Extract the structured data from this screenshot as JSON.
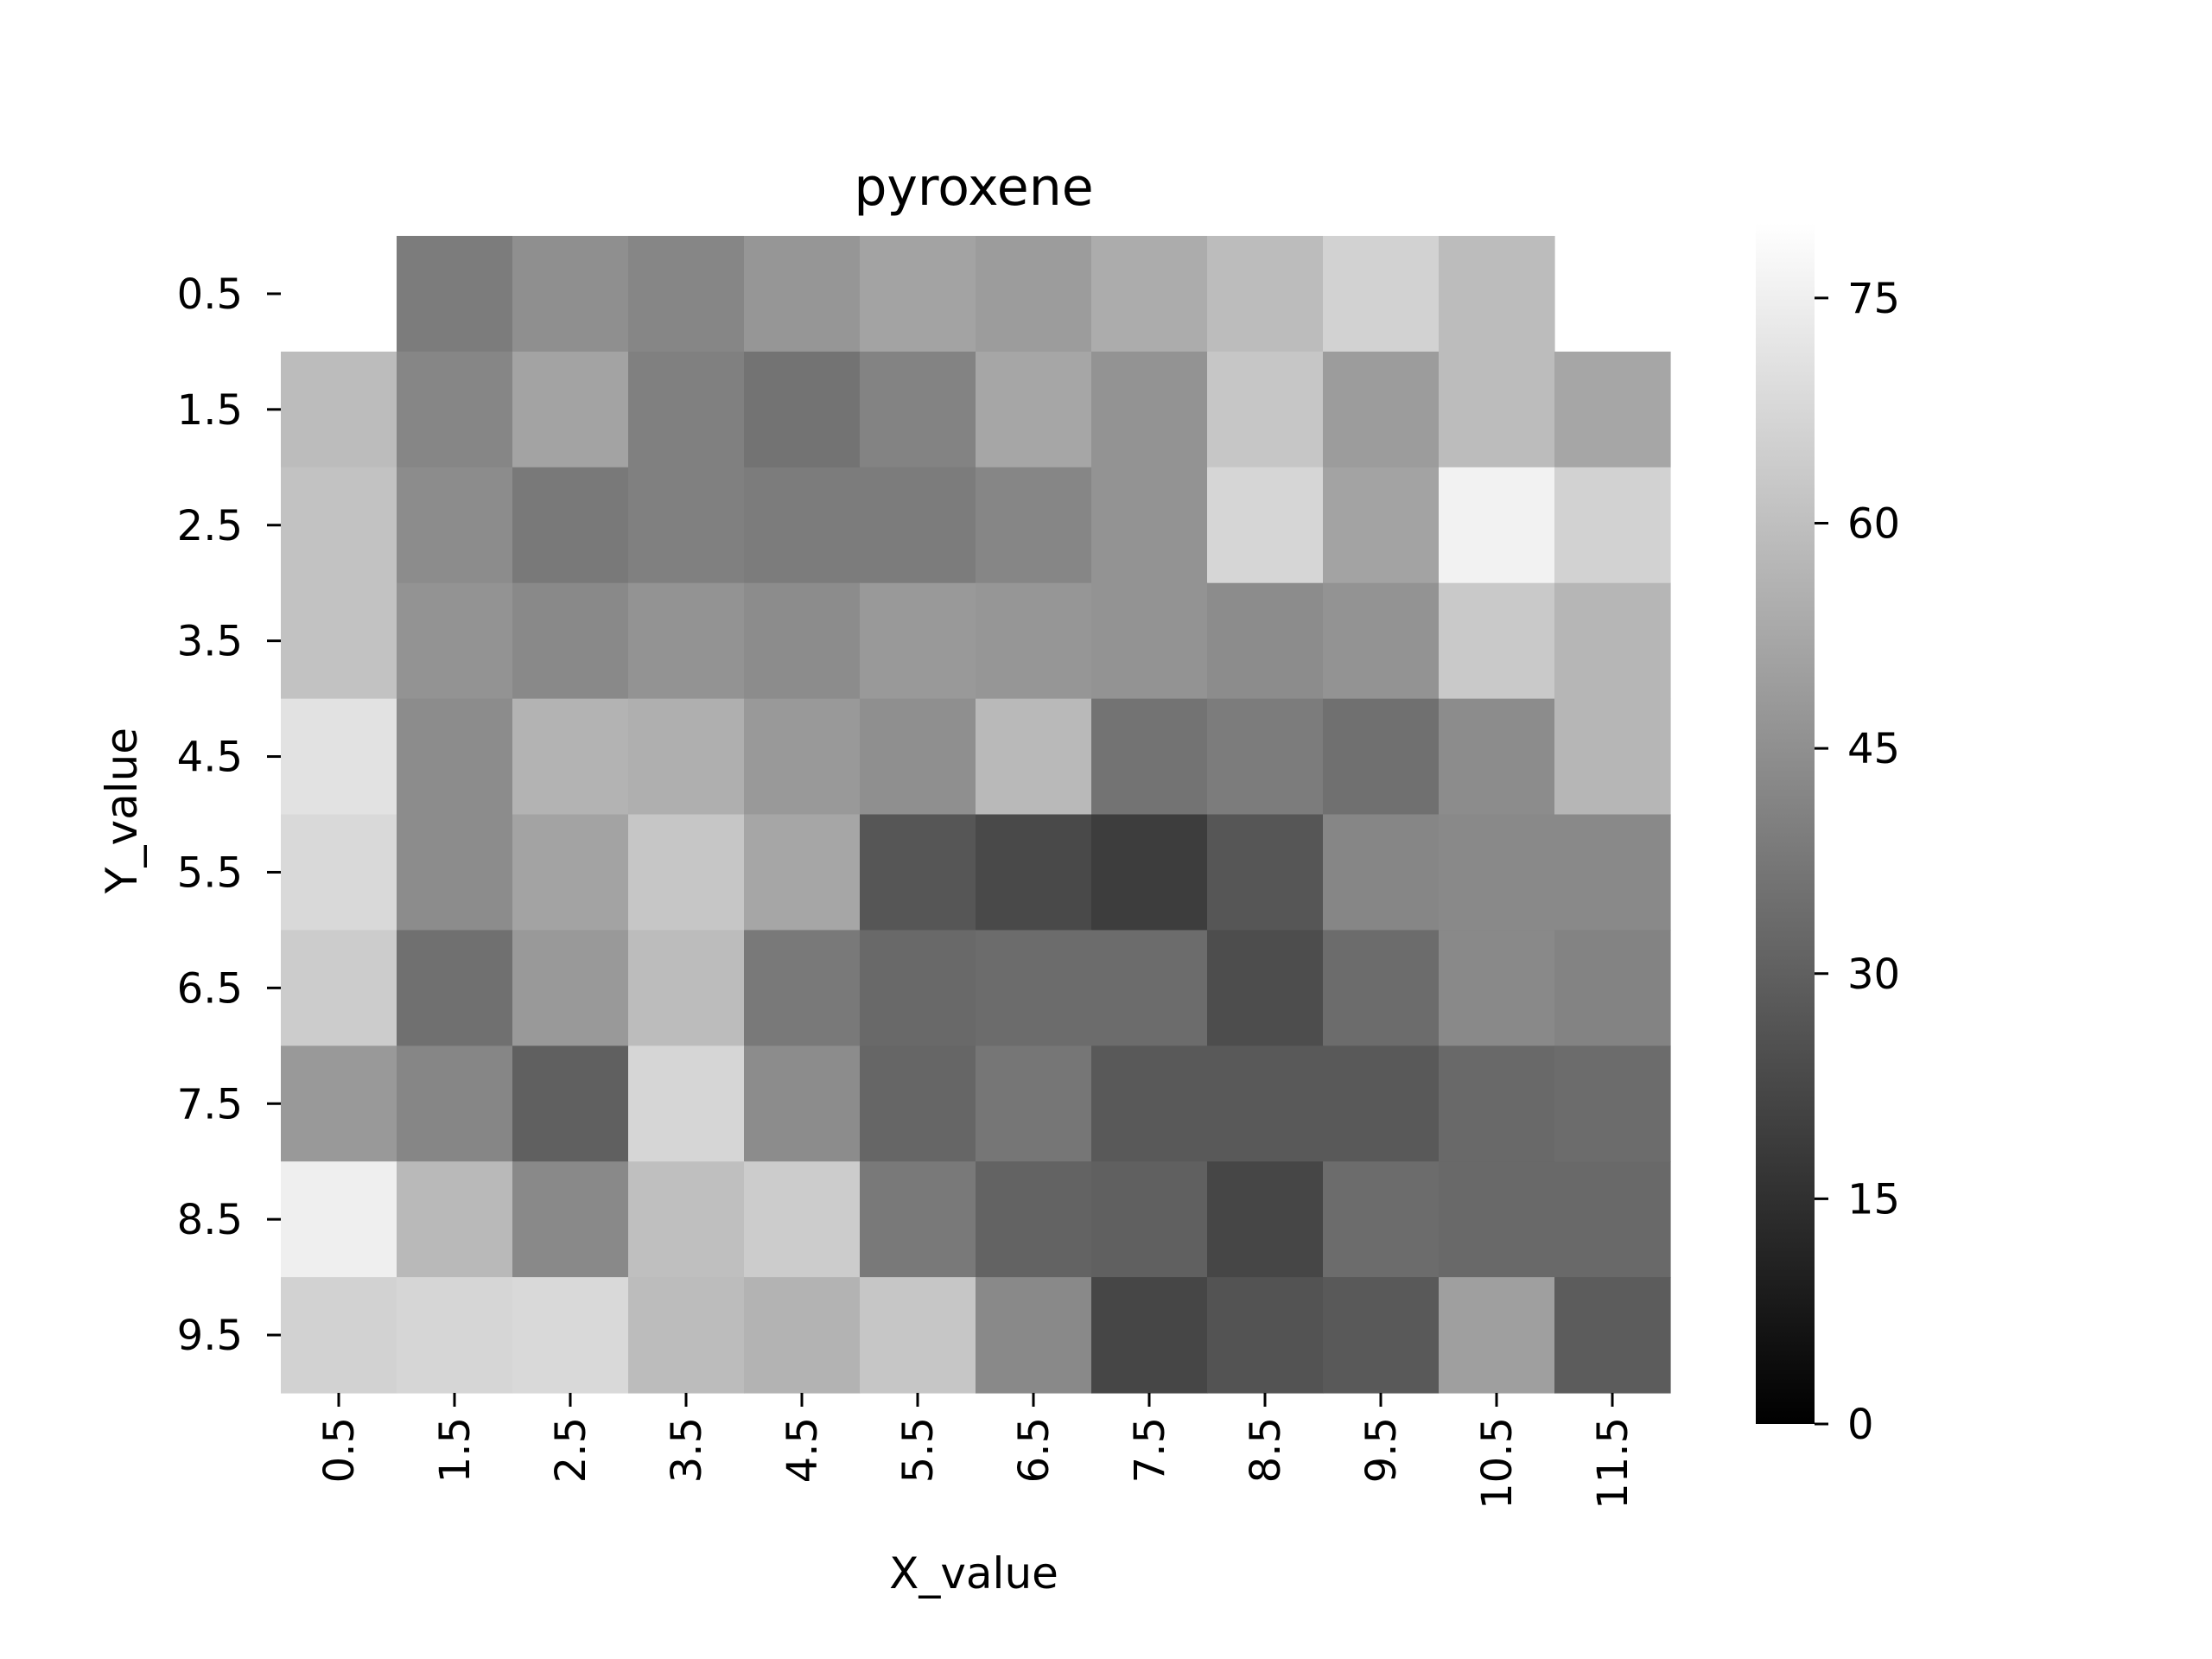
{
  "chart_data": {
    "type": "heatmap",
    "title": "pyroxene",
    "xlabel": "X_value",
    "ylabel": "Y_value",
    "x_categories": [
      "0.5",
      "1.5",
      "2.5",
      "3.5",
      "4.5",
      "5.5",
      "6.5",
      "7.5",
      "8.5",
      "9.5",
      "10.5",
      "11.5"
    ],
    "y_categories": [
      "0.5",
      "1.5",
      "2.5",
      "3.5",
      "4.5",
      "5.5",
      "6.5",
      "7.5",
      "8.5",
      "9.5"
    ],
    "values": [
      [
        null,
        39,
        45,
        42,
        47,
        51,
        49,
        54,
        59,
        66,
        59,
        null
      ],
      [
        59,
        42,
        51,
        40,
        36,
        41,
        52,
        46,
        62,
        49,
        59,
        52
      ],
      [
        61,
        44,
        38,
        40,
        39,
        39,
        42,
        46,
        67,
        51,
        76,
        66
      ],
      [
        61,
        46,
        43,
        46,
        44,
        48,
        47,
        46,
        44,
        46,
        63,
        57
      ],
      [
        71,
        44,
        56,
        55,
        48,
        45,
        58,
        36,
        39,
        35,
        44,
        57
      ],
      [
        68,
        44,
        51,
        62,
        52,
        27,
        23,
        19,
        27,
        42,
        43,
        43
      ],
      [
        64,
        35,
        48,
        59,
        38,
        33,
        34,
        34,
        24,
        34,
        43,
        41
      ],
      [
        48,
        42,
        30,
        67,
        44,
        32,
        37,
        28,
        28,
        28,
        33,
        34
      ],
      [
        75,
        58,
        43,
        60,
        64,
        38,
        31,
        30,
        22,
        34,
        33,
        33
      ],
      [
        66,
        67,
        68,
        59,
        56,
        62,
        43,
        22,
        26,
        28,
        50,
        29
      ]
    ],
    "colorbar": {
      "min": 0,
      "max": 80,
      "ticks": [
        "0",
        "15",
        "30",
        "45",
        "60",
        "75"
      ],
      "colormap": "gray"
    }
  }
}
